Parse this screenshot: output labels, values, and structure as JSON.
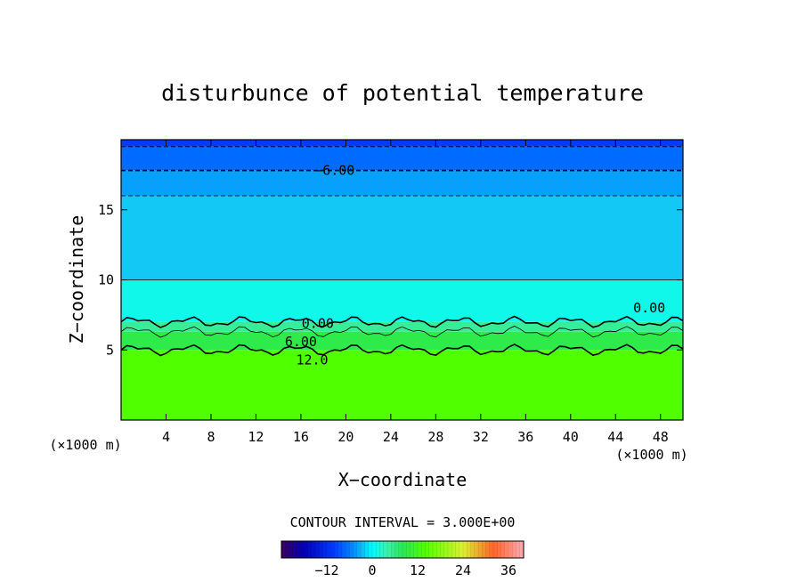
{
  "chart_data": {
    "type": "heatmap",
    "title": "disturbunce of potential temperature",
    "xlabel": "X−coordinate",
    "ylabel": "Z−coordinate",
    "x_unit": "(×1000 m)",
    "y_unit": "(×1000 m)",
    "xlim": [
      0,
      50
    ],
    "ylim": [
      0,
      20
    ],
    "x_ticks": [
      4,
      8,
      12,
      16,
      20,
      24,
      28,
      32,
      36,
      40,
      44,
      48
    ],
    "y_ticks": [
      5,
      10,
      15
    ],
    "contour_interval_text": "CONTOUR INTERVAL = 3.000E+00",
    "contour_labels": [
      {
        "text": "−6.00",
        "x": 19,
        "z": 17.8
      },
      {
        "text": "0.00",
        "x": 17.5,
        "z": 6.9
      },
      {
        "text": "6.00",
        "x": 16,
        "z": 5.6
      },
      {
        "text": "12.0",
        "x": 17,
        "z": 4.3
      },
      {
        "text": "0.00",
        "x": 47,
        "z": 8.0
      }
    ],
    "value_bands": [
      {
        "z_from": 19.5,
        "z_to": 20,
        "value": -10
      },
      {
        "z_from": 17.8,
        "z_to": 19.5,
        "value": -7
      },
      {
        "z_from": 16.0,
        "z_to": 17.8,
        "value": -4
      },
      {
        "z_from": 10.0,
        "z_to": 16.0,
        "value": -2
      },
      {
        "z_from": 7.0,
        "z_to": 10.0,
        "value": 1
      },
      {
        "z_from": 6.3,
        "z_to": 7.0,
        "value": 5
      },
      {
        "z_from": 5.0,
        "z_to": 6.3,
        "value": 9
      },
      {
        "z_from": 0,
        "z_to": 5.0,
        "value": 14
      }
    ],
    "colorbar": {
      "min": -24,
      "max": 40,
      "ticks": [
        -12,
        0,
        12,
        24,
        36
      ]
    }
  },
  "colors": {
    "background": "#ffffff",
    "axis": "#000000"
  }
}
